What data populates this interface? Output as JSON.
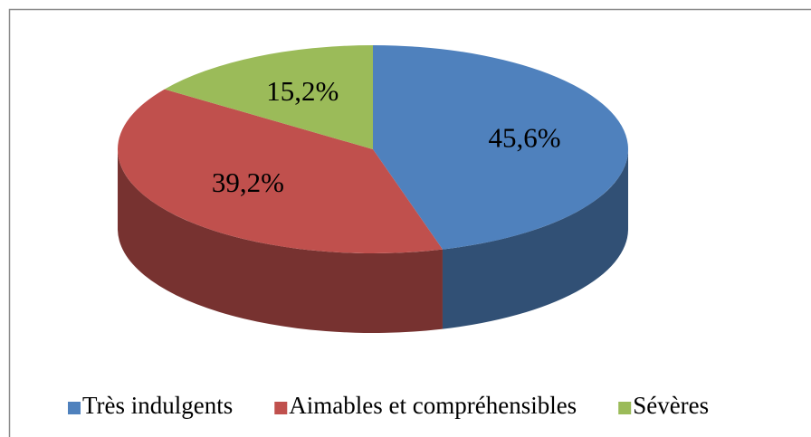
{
  "chart_data": {
    "type": "pie3d",
    "categories": [
      "Très indulgents",
      "Aimables et compréhensibles",
      "Sévères"
    ],
    "values": [
      45.6,
      39.2,
      15.2
    ],
    "value_labels": [
      "45,6%",
      "39,2%",
      "15,2%"
    ],
    "colors": [
      "#4f81bd",
      "#c0504d",
      "#9bbb59"
    ],
    "legend": "bottom"
  }
}
